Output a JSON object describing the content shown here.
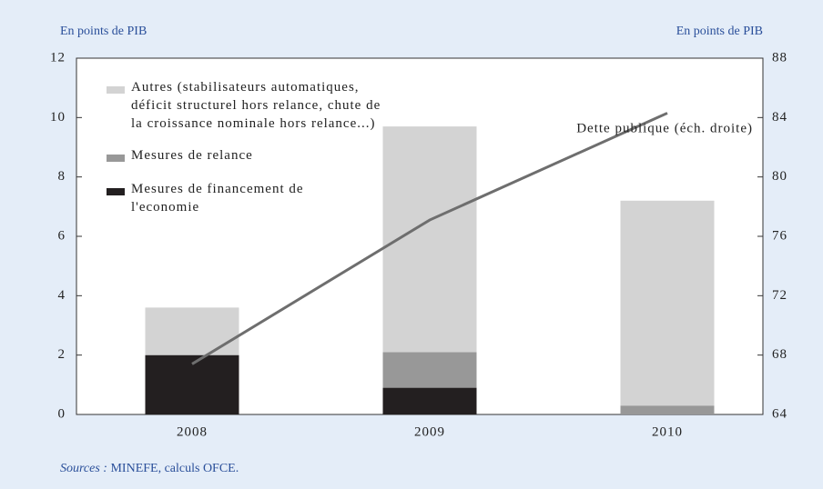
{
  "chart_data": {
    "type": "bar",
    "stacked": true,
    "categories": [
      "2008",
      "2009",
      "2010"
    ],
    "series": [
      {
        "name": "Mesures de financement de l'economie",
        "color": "#231f20",
        "values": [
          2.0,
          0.9,
          0
        ]
      },
      {
        "name": "Mesures de relance",
        "color": "#989898",
        "values": [
          0,
          1.2,
          0.3
        ]
      },
      {
        "name": "Autres (stabilisateurs automatiques, déficit structurel hors relance, chute de la croissance nominale hors relance...)",
        "color": "#d3d3d3",
        "values": [
          1.6,
          7.6,
          6.9
        ]
      },
      {
        "name": "Dette publique (éch. droite)",
        "type": "line",
        "axis": "y2",
        "color": "#6e6e6e",
        "values": [
          67.4,
          77.1,
          84.3
        ]
      }
    ],
    "ylabel": "En points de PIB",
    "y2label": "En points de PIB",
    "ylim": [
      0,
      12
    ],
    "yticks": [
      0,
      2,
      4,
      6,
      8,
      10,
      12
    ],
    "y2lim": [
      64,
      88
    ],
    "y2ticks": [
      64,
      68,
      72,
      76,
      80,
      84,
      88
    ],
    "source_label": "Sources :",
    "source": "MINEFE, calculs OFCE."
  }
}
